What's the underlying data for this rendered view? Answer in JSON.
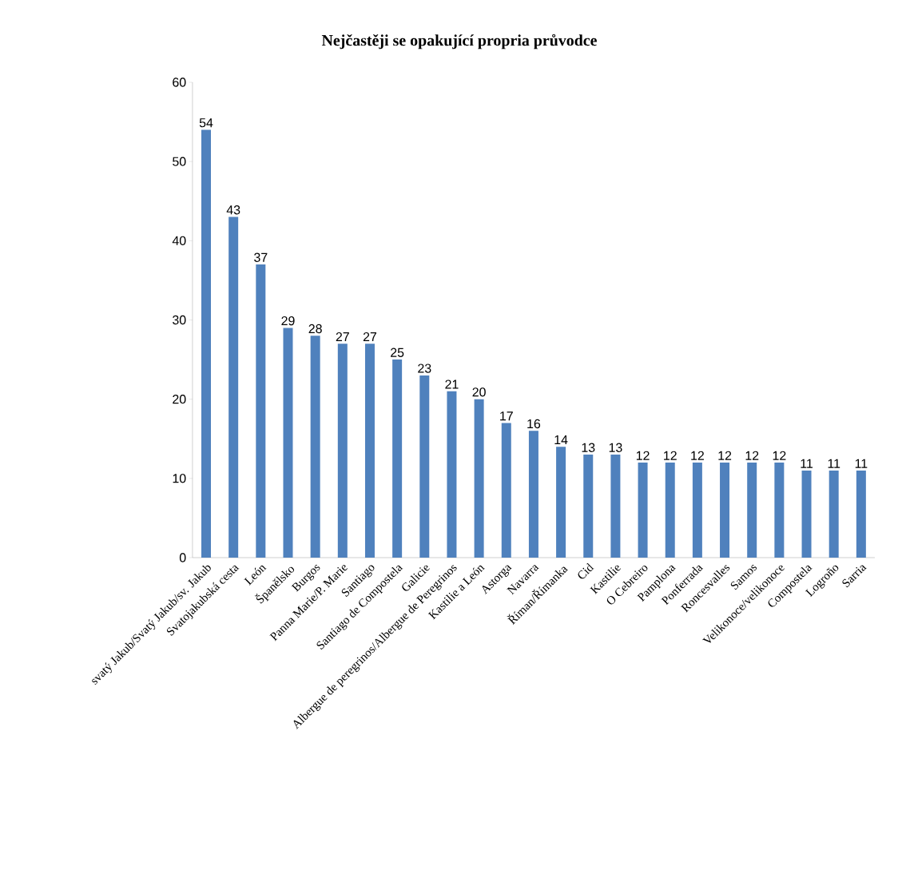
{
  "chart_data": {
    "type": "bar",
    "title": "Nejčastěji se opakující propria průvodce",
    "categories": [
      "svatý Jakub/Svatý Jakub/sv. Jakub",
      "Svatojakubská cesta",
      "León",
      "Španělsko",
      "Burgos",
      "Panna Marie/P. Marie",
      "Santiago",
      "Santiago de Compostela",
      "Galicie",
      "Albergue de peregrinos/Albergue de Peregrinos",
      "Kastilie a León",
      "Astorga",
      "Navarra",
      "Říman/Římanka",
      "Cid",
      "Kastilie",
      "O Cebreiro",
      "Pamplona",
      "Ponferrada",
      "Roncesvalles",
      "Samos",
      "Velikonoce/velikonoce",
      "Compostela",
      "Logroño",
      "Sarria"
    ],
    "values": [
      54,
      43,
      37,
      29,
      28,
      27,
      27,
      25,
      23,
      21,
      20,
      17,
      16,
      14,
      13,
      13,
      12,
      12,
      12,
      12,
      12,
      12,
      11,
      11,
      11
    ],
    "color": "#4f81bd",
    "ylim": [
      0,
      60
    ],
    "yticks": [
      0,
      10,
      20,
      30,
      40,
      50,
      60
    ],
    "data_labels": true
  }
}
